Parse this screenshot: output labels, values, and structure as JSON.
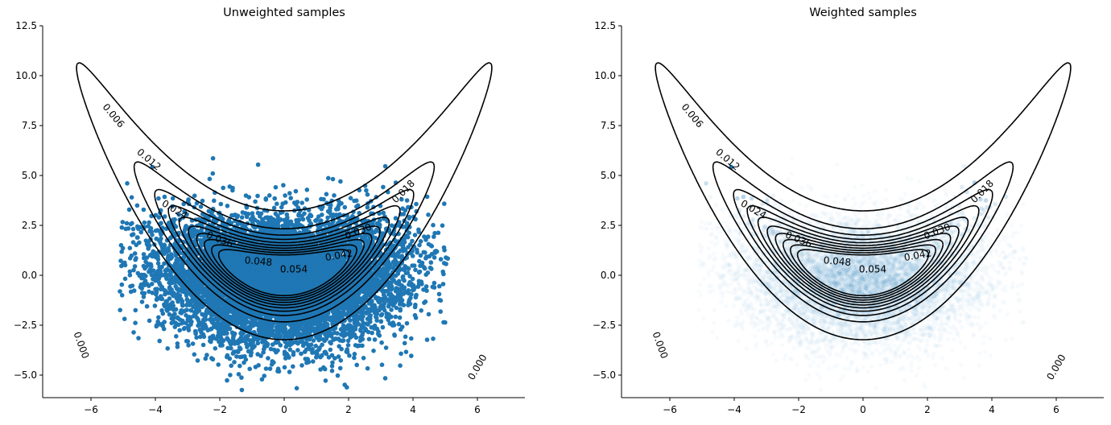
{
  "chart_data": [
    {
      "type": "scatter",
      "title": "Unweighted samples",
      "xlabel": "",
      "ylabel": "",
      "xlim": [
        -7.5,
        7.5
      ],
      "ylim": [
        -6.1,
        12.5
      ],
      "xticks": [
        "-6",
        "-4",
        "-2",
        "0",
        "2",
        "4",
        "6"
      ],
      "yticks": [
        "-5.0",
        "-2.5",
        "0.0",
        "2.5",
        "5.0",
        "7.5",
        "10.0",
        "12.5"
      ],
      "grid": false,
      "spines": [
        "left",
        "bottom"
      ],
      "scatter": {
        "color": "#1f77b4",
        "alpha": 1.0,
        "description": "Dense cloud of samples roughly uniform/Gaussian over x in [-5, 5], y in [-5.2, 5.3], densest around x in [-4,4], y in [-4,3]",
        "x_range": [
          -5.1,
          5.1
        ],
        "y_range": [
          -5.2,
          5.3
        ]
      },
      "contour": {
        "color": "#000000",
        "levels": [
          0.0,
          0.006,
          0.012,
          0.018,
          0.024,
          0.03,
          0.036,
          0.042,
          0.048,
          0.054
        ],
        "labels": [
          "0.000",
          "0.006",
          "0.012",
          "0.018",
          "0.024",
          "0.030",
          "0.036",
          "0.042",
          "0.048",
          "0.054"
        ],
        "shape": "banana (curved upward, y ≈ x²/4)"
      }
    },
    {
      "type": "scatter",
      "title": "Weighted samples",
      "xlabel": "",
      "ylabel": "",
      "xlim": [
        -7.5,
        7.5
      ],
      "ylim": [
        -6.1,
        12.5
      ],
      "xticks": [
        "-6",
        "-4",
        "-2",
        "0",
        "2",
        "4",
        "6"
      ],
      "yticks": [
        "-5.0",
        "-2.5",
        "0.0",
        "2.5",
        "5.0",
        "7.5",
        "10.0",
        "12.5"
      ],
      "grid": false,
      "spines": [
        "left",
        "bottom"
      ],
      "scatter": {
        "color": "#1f77b4",
        "alpha": "weighted (varies by importance weight)",
        "description": "Same samples with opacity proportional to weight; opaque along banana-shaped high-density region, faint elsewhere",
        "x_range": [
          -4.9,
          4.9
        ],
        "y_range": [
          -4.2,
          4.9
        ]
      },
      "contour": {
        "color": "#000000",
        "levels": [
          0.0,
          0.006,
          0.012,
          0.018,
          0.024,
          0.03,
          0.036,
          0.042,
          0.048,
          0.054
        ],
        "labels": [
          "0.000",
          "0.006",
          "0.012",
          "0.018",
          "0.024",
          "0.030",
          "0.036",
          "0.042",
          "0.048",
          "0.054"
        ],
        "shape": "banana (curved upward, y ≈ x²/4)"
      }
    }
  ],
  "panels": [
    {
      "title": "Unweighted samples"
    },
    {
      "title": "Weighted samples"
    }
  ]
}
